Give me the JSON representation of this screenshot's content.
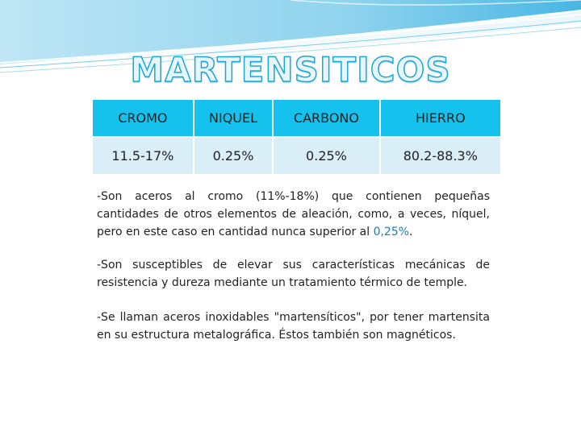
{
  "slide": {
    "title": "MARTENSITICOS",
    "colors": {
      "accent": "#15c2ee",
      "title_outline": "#1aa6d8",
      "cell": "#d9eef7"
    }
  },
  "table": {
    "headers": [
      "CROMO",
      "NIQUEL",
      "CARBONO",
      "HIERRO"
    ],
    "rows": [
      [
        "11.5-17%",
        "0.25%",
        "0.25%",
        "80.2-88.3%"
      ]
    ]
  },
  "paragraphs": {
    "p1_before": "-Son  aceros al cromo (11%-18%) que contienen pequeñas cantidades de otros elementos de aleación, como, a veces, níquel, pero en este caso en cantidad nunca superior al ",
    "p1_highlight": "0,25%",
    "p1_after": ".",
    "p2": "-Son susceptibles de elevar sus características mecánicas de resistencia y dureza mediante un tratamiento térmico de temple.",
    "p3": "-Se llaman aceros inoxidables \"martensíticos\", por tener martensita en su estructura metalográfica. Éstos también son magnéticos."
  }
}
